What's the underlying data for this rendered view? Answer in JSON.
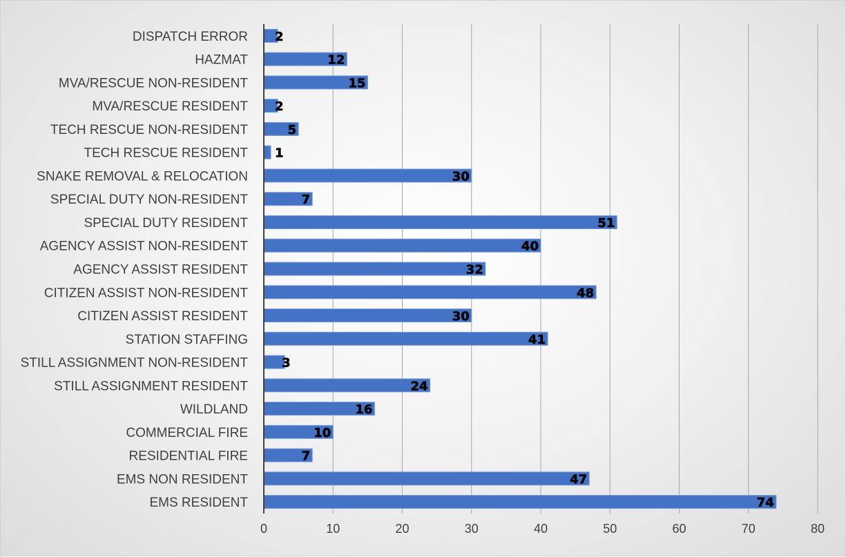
{
  "chart_data": {
    "type": "bar",
    "orientation": "horizontal",
    "title": "",
    "xlabel": "",
    "ylabel": "",
    "categories": [
      "DISPATCH ERROR",
      "HAZMAT",
      "MVA/RESCUE NON-RESIDENT",
      "MVA/RESCUE RESIDENT",
      "TECH RESCUE NON-RESIDENT",
      "TECH RESCUE RESIDENT",
      "SNAKE REMOVAL & RELOCATION",
      "SPECIAL DUTY NON-RESIDENT",
      "SPECIAL DUTY RESIDENT",
      "AGENCY ASSIST NON-RESIDENT",
      "AGENCY ASSIST RESIDENT",
      "CITIZEN ASSIST NON-RESIDENT",
      "CITIZEN ASSIST RESIDENT",
      "STATION STAFFING",
      "STILL ASSIGNMENT NON-RESIDENT",
      "STILL ASSIGNMENT RESIDENT",
      "WILDLAND",
      "COMMERCIAL FIRE",
      "RESIDENTIAL FIRE",
      "EMS NON RESIDENT",
      "EMS RESIDENT"
    ],
    "values": [
      2,
      12,
      15,
      2,
      5,
      1,
      30,
      7,
      51,
      40,
      32,
      48,
      30,
      41,
      3,
      24,
      16,
      10,
      7,
      47,
      74
    ],
    "xlim": [
      0,
      80
    ],
    "xticks": [
      0,
      10,
      20,
      30,
      40,
      50,
      60,
      70,
      80
    ],
    "grid": "vertical",
    "legend": "none",
    "data_labels": true,
    "bar_color": "#4472c4",
    "background": "gradient-gray"
  }
}
